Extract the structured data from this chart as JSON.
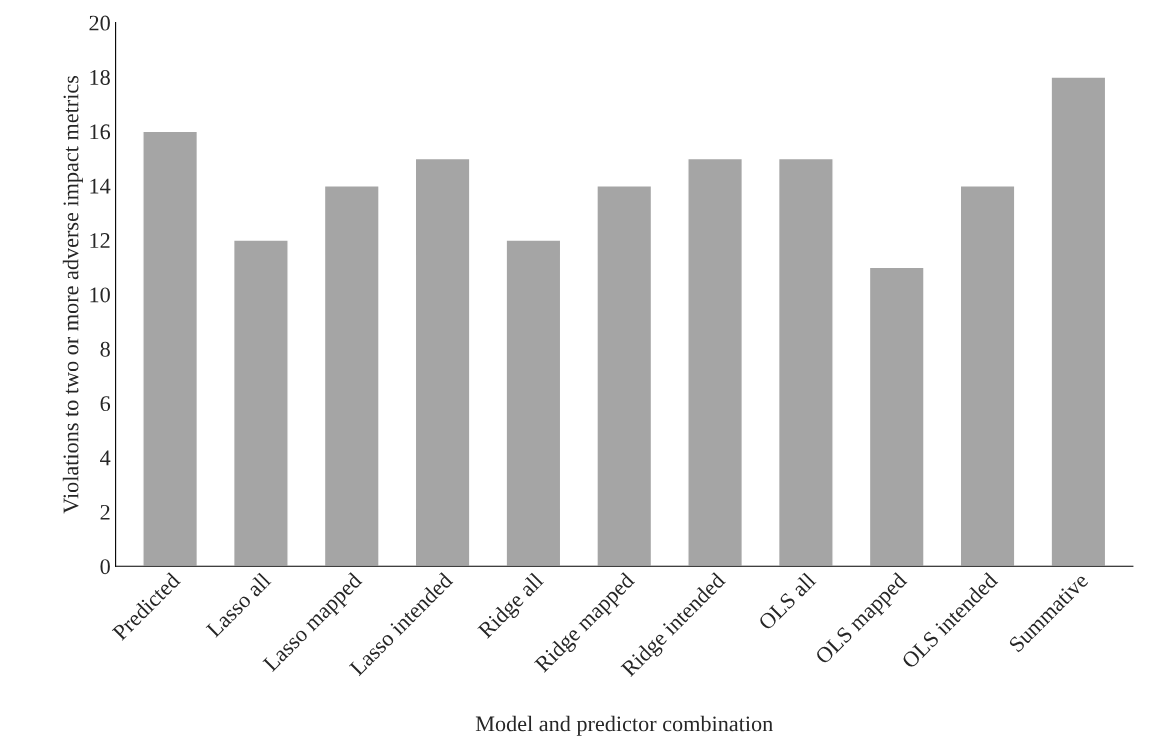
{
  "chart_data": {
    "type": "bar",
    "xlabel": "Model and predictor combination",
    "ylabel": "Violations to two or more adverse impact metrics",
    "categories": [
      "Predicted",
      "Lasso all",
      "Lasso mapped",
      "Lasso intended",
      "Ridge all",
      "Ridge mapped",
      "Ridge intended",
      "OLS all",
      "OLS mapped",
      "OLS intended",
      "Summative"
    ],
    "values": [
      16,
      12,
      14,
      15,
      12,
      14,
      15,
      15,
      11,
      14,
      18
    ],
    "color": "#a5a5a5",
    "ylim": [
      0,
      20
    ],
    "yticks": [
      0,
      2,
      4,
      6,
      8,
      10,
      12,
      14,
      16,
      18,
      20
    ],
    "grid": false
  }
}
